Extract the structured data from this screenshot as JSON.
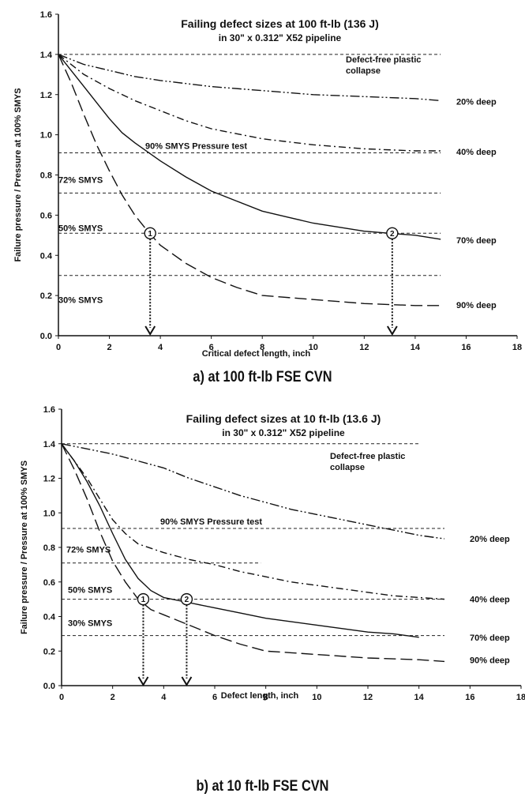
{
  "chart_data": [
    {
      "type": "line",
      "title": "Failing defect sizes at 100 ft-lb (136 J)",
      "subtitle": "in 30\" x 0.312\" X52 pipeline",
      "caption": "a) at 100 ft-lb FSE CVN",
      "xlabel": "Critical defect length, inch",
      "ylabel": "Failure pressure / Pressure at 100% SMYS",
      "xlim": [
        0,
        18
      ],
      "ylim": [
        0,
        1.6
      ],
      "x_ticks": [
        "0",
        "2",
        "4",
        "6",
        "8",
        "10",
        "12",
        "14",
        "16",
        "18"
      ],
      "y_ticks": [
        "0.0",
        "0.2",
        "0.4",
        "0.6",
        "0.8",
        "1.0",
        "1.2",
        "1.4",
        "1.6"
      ],
      "series": [
        {
          "name": "20% deep",
          "x": [
            0,
            1,
            2,
            3,
            4,
            6,
            8,
            10,
            12,
            14,
            15
          ],
          "y": [
            1.4,
            1.35,
            1.32,
            1.29,
            1.27,
            1.24,
            1.22,
            1.2,
            1.19,
            1.18,
            1.17
          ]
        },
        {
          "name": "40% deep",
          "x": [
            0,
            1,
            2,
            3,
            4,
            5,
            6,
            8,
            10,
            12,
            14,
            15
          ],
          "y": [
            1.4,
            1.3,
            1.23,
            1.17,
            1.12,
            1.07,
            1.03,
            0.98,
            0.95,
            0.93,
            0.92,
            0.92
          ]
        },
        {
          "name": "70% deep",
          "x": [
            0,
            0.5,
            1,
            1.5,
            2,
            2.5,
            3,
            4,
            5,
            6,
            7,
            8,
            9,
            10,
            11,
            12,
            13,
            14,
            15
          ],
          "y": [
            1.4,
            1.32,
            1.24,
            1.16,
            1.08,
            1.01,
            0.96,
            0.87,
            0.79,
            0.72,
            0.67,
            0.62,
            0.59,
            0.56,
            0.54,
            0.52,
            0.51,
            0.5,
            0.48
          ]
        },
        {
          "name": "90% deep",
          "x": [
            0,
            0.5,
            1,
            1.5,
            2,
            2.5,
            3,
            3.5,
            4,
            5,
            6,
            7,
            8,
            10,
            12,
            14,
            15
          ],
          "y": [
            1.4,
            1.26,
            1.1,
            0.95,
            0.82,
            0.7,
            0.6,
            0.52,
            0.45,
            0.36,
            0.29,
            0.24,
            0.2,
            0.18,
            0.16,
            0.15,
            0.15
          ]
        }
      ],
      "reference_lines": [
        {
          "y": 1.4,
          "x_end": 15.0
        },
        {
          "y": 0.91,
          "x_end": 15.0,
          "label": "90% SMYS Pressure test"
        },
        {
          "y": 0.71,
          "x_end": 15.0,
          "label": "72% SMYS"
        },
        {
          "y": 0.51,
          "x_end": 15.0,
          "label": "50% SMYS"
        },
        {
          "y": 0.3,
          "x_end": 15.0,
          "label": "30% SMYS"
        }
      ],
      "annotations": [
        "Defect-free plastic",
        "collapse"
      ],
      "markers": [
        {
          "label": "1",
          "x": 3.6,
          "y": 0.51
        },
        {
          "label": "2",
          "x": 13.1,
          "y": 0.51
        }
      ]
    },
    {
      "type": "line",
      "title": "Failing defect sizes at 10 ft-lb (13.6 J)",
      "subtitle": "in 30\" x 0.312\" X52 pipeline",
      "caption": "b) at 10 ft-lb FSE CVN",
      "xlabel": "Defect length, inch",
      "ylabel": "Failure pressure / Pressure at 100% SMYS",
      "xlim": [
        0,
        18
      ],
      "ylim": [
        0,
        1.6
      ],
      "x_ticks": [
        "0",
        "2",
        "4",
        "6",
        "8",
        "10",
        "12",
        "14",
        "16",
        "18"
      ],
      "y_ticks": [
        "0.0",
        "0.2",
        "0.4",
        "0.6",
        "0.8",
        "1.0",
        "1.2",
        "1.4",
        "1.6"
      ],
      "series": [
        {
          "name": "20% deep",
          "x": [
            0,
            1,
            2,
            3,
            4,
            5,
            6,
            7,
            8,
            9,
            10,
            11,
            12,
            13,
            14,
            15
          ],
          "y": [
            1.4,
            1.37,
            1.34,
            1.3,
            1.26,
            1.2,
            1.15,
            1.1,
            1.06,
            1.02,
            0.99,
            0.96,
            0.93,
            0.9,
            0.87,
            0.85
          ]
        },
        {
          "name": "40% deep",
          "x": [
            0,
            0.5,
            1,
            1.5,
            2,
            2.5,
            3,
            4,
            5,
            6,
            7,
            8,
            9,
            10,
            11,
            12,
            13,
            14,
            15
          ],
          "y": [
            1.4,
            1.3,
            1.2,
            1.08,
            0.96,
            0.88,
            0.82,
            0.77,
            0.73,
            0.7,
            0.66,
            0.63,
            0.6,
            0.58,
            0.56,
            0.54,
            0.52,
            0.51,
            0.5
          ]
        },
        {
          "name": "70% deep",
          "x": [
            0,
            0.5,
            1,
            1.5,
            2,
            2.5,
            3,
            3.5,
            4,
            5,
            6,
            7,
            8,
            9,
            10,
            11,
            12,
            13,
            14
          ],
          "y": [
            1.4,
            1.3,
            1.18,
            1.04,
            0.88,
            0.73,
            0.62,
            0.55,
            0.51,
            0.48,
            0.45,
            0.42,
            0.39,
            0.37,
            0.35,
            0.33,
            0.31,
            0.3,
            0.28
          ]
        },
        {
          "name": "90% deep",
          "x": [
            0,
            0.5,
            1,
            1.5,
            2,
            2.5,
            3,
            3.5,
            4,
            5,
            6,
            7,
            8,
            9,
            10,
            12,
            14,
            15
          ],
          "y": [
            1.4,
            1.25,
            1.08,
            0.89,
            0.72,
            0.6,
            0.5,
            0.44,
            0.41,
            0.35,
            0.29,
            0.24,
            0.2,
            0.19,
            0.18,
            0.16,
            0.15,
            0.14
          ]
        }
      ],
      "reference_lines": [
        {
          "y": 1.4,
          "x_end": 14.0
        },
        {
          "y": 0.91,
          "x_end": 15.0,
          "label": "90% SMYS Pressure test"
        },
        {
          "y": 0.71,
          "x_end": 7.8,
          "label": "72% SMYS"
        },
        {
          "y": 0.5,
          "x_end": 15.0,
          "label": "50% SMYS"
        },
        {
          "y": 0.29,
          "x_end": 15.0,
          "label": "30% SMYS"
        }
      ],
      "annotations": [
        "Defect-free plastic",
        "collapse"
      ],
      "markers": [
        {
          "label": "1",
          "x": 3.2,
          "y": 0.5
        },
        {
          "label": "2",
          "x": 4.9,
          "y": 0.5
        }
      ]
    }
  ]
}
